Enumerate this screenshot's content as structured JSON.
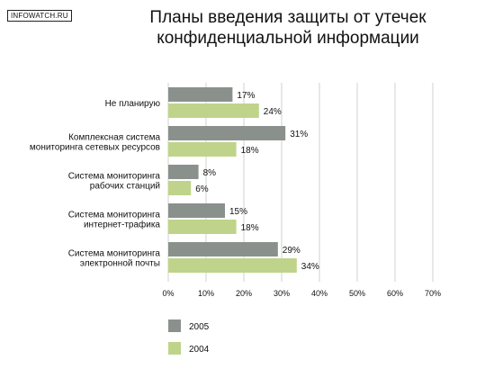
{
  "logo": "INFOWATCH.RU",
  "title_line1": "Планы введения защиты от утечек",
  "title_line2": "конфиденциальной информации",
  "chart_data": {
    "type": "bar",
    "orientation": "horizontal",
    "title": "Планы введения защиты от утечек конфиденциальной информации",
    "categories": [
      [
        "Не планирую"
      ],
      [
        "Комплексная система",
        "мониторинга сетевых ресурсов"
      ],
      [
        "Система мониторинга",
        "рабочих станций"
      ],
      [
        "Система мониторинга",
        "интернет-трафика"
      ],
      [
        "Система мониторинга",
        "электронной почты"
      ]
    ],
    "series": [
      {
        "name": "2005",
        "color": "#8a918c",
        "values": [
          17,
          31,
          8,
          15,
          29
        ]
      },
      {
        "name": "2004",
        "color": "#bfd48a",
        "values": [
          24,
          18,
          6,
          18,
          34
        ]
      }
    ],
    "value_suffix": "%",
    "xlim": [
      0,
      70
    ],
    "xticks": [
      "0%",
      "10%",
      "20%",
      "30%",
      "40%",
      "50%",
      "60%",
      "70%"
    ],
    "grid": true,
    "legend_position": "bottom-left"
  }
}
